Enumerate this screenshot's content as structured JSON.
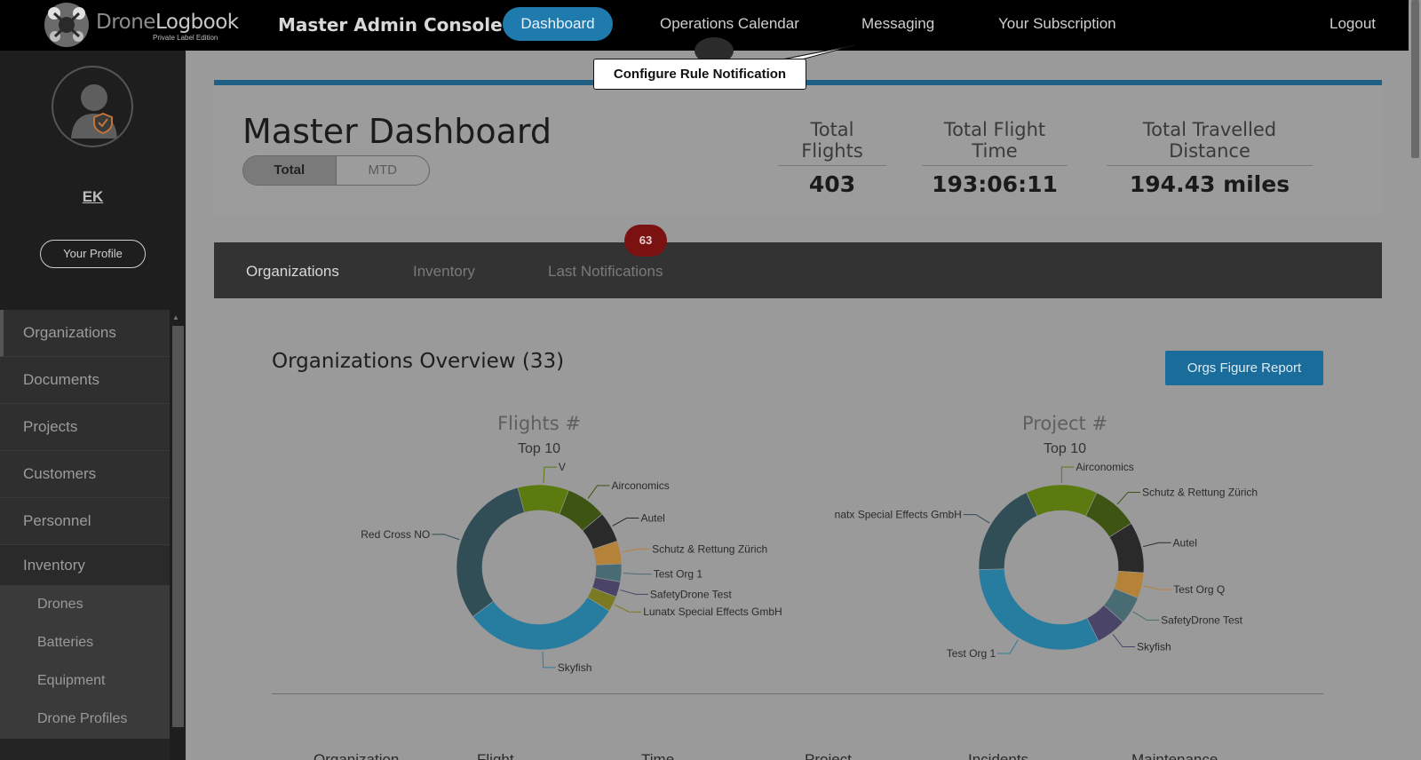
{
  "brand": {
    "name_light": "Drone",
    "name_bold": "Logbook",
    "edition": "Private Label Edition"
  },
  "header": {
    "console_title": "Master Admin Console",
    "nav": [
      "Dashboard",
      "Operations Calendar",
      "Messaging",
      "Your Subscription"
    ],
    "logout": "Logout"
  },
  "tooltip": "Configure Rule Notification",
  "user": {
    "initials": "EK",
    "profile_button": "Your Profile"
  },
  "sidebar": {
    "items": [
      "Organizations",
      "Documents",
      "Projects",
      "Customers",
      "Personnel",
      "Inventory"
    ],
    "subitems": [
      "Drones",
      "Batteries",
      "Equipment",
      "Drone Profiles"
    ]
  },
  "dashboard": {
    "title": "Master Dashboard",
    "toggle": [
      "Total",
      "MTD"
    ],
    "stats": [
      {
        "label": "Total Flights",
        "value": "403"
      },
      {
        "label": "Total Flight Time",
        "value": "193:06:11"
      },
      {
        "label": "Total Travelled Distance",
        "value": "194.43 miles"
      }
    ]
  },
  "tabs": {
    "items": [
      "Organizations",
      "Inventory",
      "Last Notifications"
    ],
    "badge": "63"
  },
  "overview": {
    "title": "Organizations Overview (33)",
    "report_button": "Orgs Figure Report",
    "columns": [
      "Organization",
      "Flight",
      "Time",
      "Project",
      "Incidents",
      "Maintenance"
    ]
  },
  "chart_data": [
    {
      "type": "pie",
      "title": "Flights #",
      "subtitle": "Top 10",
      "categories": [
        "V",
        "Airconomics",
        "Autel",
        "Schutz & Rettung Zürich",
        "Test Org 1",
        "SafetyDrone Test",
        "Lunatx Special Effects GmbH",
        "Skyfish",
        "Red Cross NO"
      ],
      "values": [
        10,
        8,
        6,
        4.5,
        3.5,
        3,
        3,
        31,
        31
      ],
      "colors": [
        "#5b7a10",
        "#3d5412",
        "#2a2a2a",
        "#b5823a",
        "#496c74",
        "#4a4468",
        "#7a7a22",
        "#267da0",
        "#314e57"
      ]
    },
    {
      "type": "pie",
      "title": "Project #",
      "subtitle": "Top 10",
      "categories": [
        "Airconomics",
        "Schutz & Rettung Zürich",
        "Autel",
        "Test Org Q",
        "SafetyDrone Test",
        "Skyfish",
        "Test Org 1",
        "Lunatx Special Effects GmbH"
      ],
      "values": [
        14,
        9,
        10,
        5,
        5.5,
        6,
        32,
        18.5
      ],
      "colors": [
        "#5b7a10",
        "#3d5412",
        "#2a2a2a",
        "#b5823a",
        "#496c74",
        "#4a4468",
        "#267da0",
        "#314e57"
      ]
    }
  ]
}
